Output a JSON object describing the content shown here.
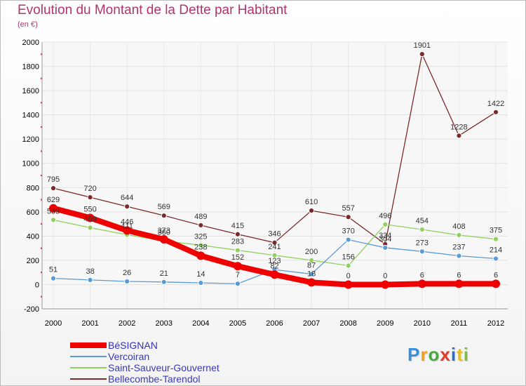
{
  "header": {
    "title": "Evolution du Montant de la Dette par Habitant",
    "subtitle": "(en €)"
  },
  "logo": {
    "text": "Proxiti",
    "colors": [
      "#3a8fd6",
      "#f0a020",
      "#4aa840",
      "#e03a2a",
      "#2a6fd0",
      "#e8c020",
      "#7cc03a"
    ]
  },
  "chart_data": {
    "type": "line",
    "x": [
      "2000",
      "2001",
      "2002",
      "2003",
      "2004",
      "2005",
      "2006",
      "2007",
      "2008",
      "2009",
      "2010",
      "2011",
      "2012"
    ],
    "ylim": [
      -200,
      2000
    ],
    "yticks": [
      "-200",
      "0",
      "200",
      "400",
      "600",
      "800",
      "1000",
      "1200",
      "1400",
      "1600",
      "1800",
      "2000"
    ],
    "ytick_values": [
      -200,
      0,
      200,
      400,
      600,
      800,
      1000,
      1200,
      1400,
      1600,
      1800,
      2000
    ],
    "grid": true,
    "legend_position": "bottom-left",
    "series": [
      {
        "name": "BéSIGNAN",
        "color": "#ee0000",
        "values": [
          629,
          550,
          446,
          373,
          238,
          152,
          82,
          18,
          0,
          0,
          6,
          6,
          6
        ],
        "labels": [
          "629",
          "550",
          "446",
          "373",
          "238",
          "152",
          "82",
          "18",
          "0",
          "0",
          "6",
          "6",
          "6"
        ]
      },
      {
        "name": "Vercoiran",
        "color": "#5b9bd5",
        "values": [
          51,
          38,
          26,
          21,
          14,
          7,
          123,
          87,
          370,
          304,
          273,
          237,
          214
        ],
        "labels": [
          "51",
          "38",
          "26",
          "21",
          "14",
          "7",
          "123",
          "87",
          "370",
          "304",
          "273",
          "237",
          "214"
        ]
      },
      {
        "name": "Saint-Sauveur-Gouvernet",
        "color": "#90d060",
        "values": [
          533,
          469,
          411,
          360,
          325,
          283,
          241,
          200,
          156,
          496,
          454,
          408,
          375
        ],
        "labels": [
          "533",
          "469",
          "411",
          "360",
          "325",
          "283",
          "241",
          "200",
          "156",
          "496",
          "454",
          "408",
          "375"
        ]
      },
      {
        "name": "Bellecombe-Tarendol",
        "color": "#7b2a2a",
        "values": [
          795,
          720,
          644,
          569,
          489,
          415,
          346,
          610,
          557,
          334,
          1901,
          1228,
          1422
        ],
        "labels": [
          "795",
          "720",
          "644",
          "569",
          "489",
          "415",
          "346",
          "610",
          "557",
          "334",
          "1901",
          "1228",
          "1422"
        ]
      }
    ]
  }
}
